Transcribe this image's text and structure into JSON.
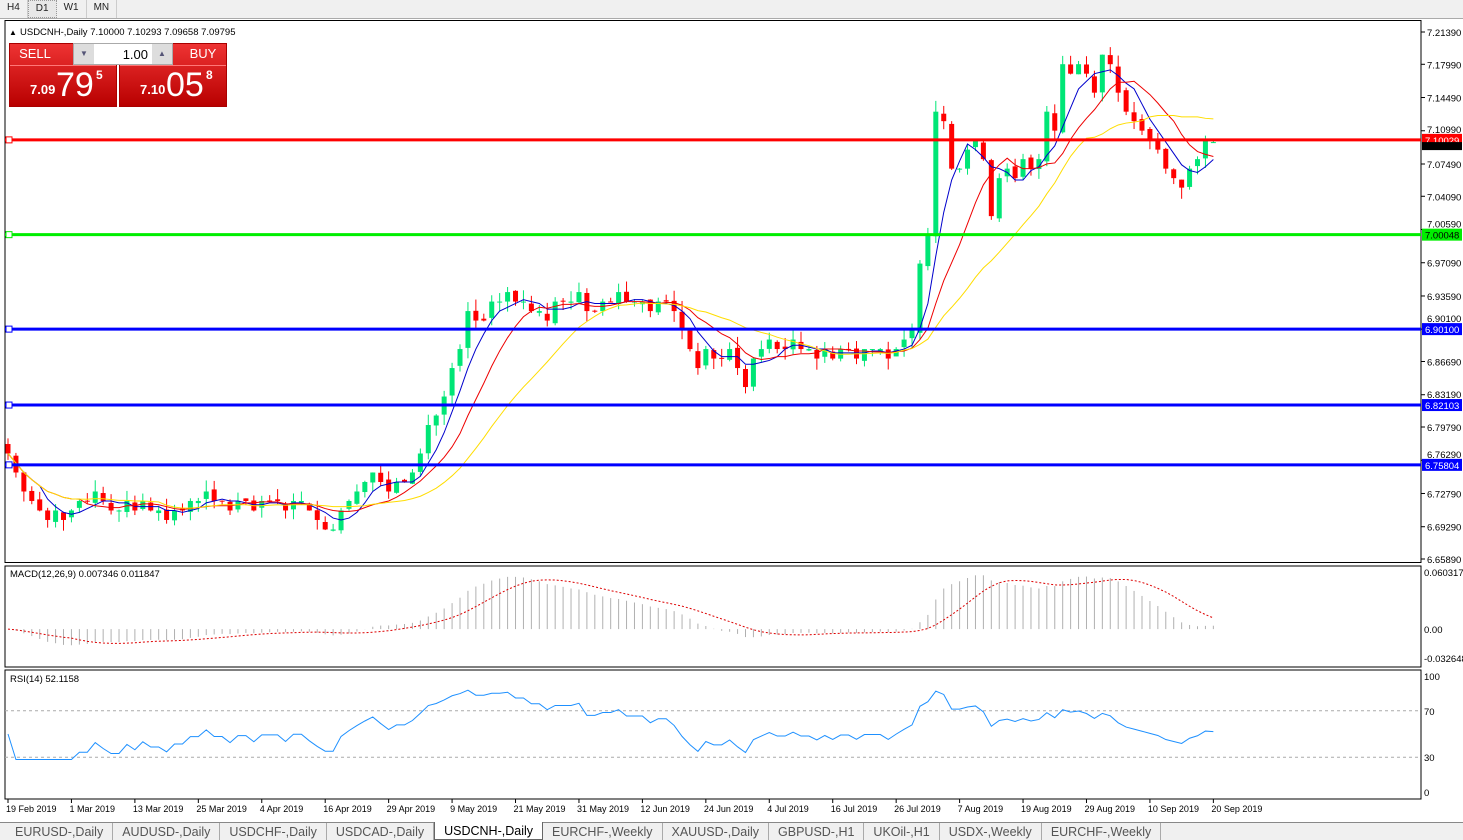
{
  "timeframes": [
    "H4",
    "D1",
    "W1",
    "MN"
  ],
  "active_timeframe": "D1",
  "header": {
    "symbol": "USDCNH-,Daily",
    "ohlc": "7.10000 7.10293 7.09658 7.09795"
  },
  "ticket": {
    "sell_label": "SELL",
    "buy_label": "BUY",
    "lot": "1.00",
    "sell_small": "7.09",
    "sell_big": "79",
    "sell_sup": "5",
    "buy_small": "7.10",
    "buy_big": "05",
    "buy_sup": "8"
  },
  "price_axis": [
    "7.21390",
    "7.17990",
    "7.14490",
    "7.10990",
    "7.07490",
    "7.04090",
    "7.00590",
    "6.97090",
    "6.93590",
    "6.90100",
    "6.86690",
    "6.83190",
    "6.79790",
    "6.76290",
    "6.72790",
    "6.69290",
    "6.65890"
  ],
  "price_range": [
    6.6589,
    7.2139
  ],
  "hlines": [
    {
      "price": "7.10029",
      "color": "#ff0000"
    },
    {
      "price": "7.00048",
      "color": "#00ee00"
    },
    {
      "price": "6.90100",
      "color": "#0000ff"
    },
    {
      "price": "6.82103",
      "color": "#0000ff"
    },
    {
      "price": "6.75804",
      "color": "#0000ff"
    }
  ],
  "current_price": "7.09795",
  "colors": {
    "bull": "#00e676",
    "bear": "#ff0000",
    "ma_fast": "#0000cc",
    "ma_mid": "#ee0000",
    "ma_slow": "#ffdd00",
    "macd_hist": "#b0b0b0",
    "macd_signal": "#dd0000",
    "rsi": "#1e90ff"
  },
  "closes": [
    6.77,
    6.75,
    6.73,
    6.72,
    6.71,
    6.7,
    6.71,
    6.7,
    6.71,
    6.72,
    6.72,
    6.73,
    6.72,
    6.71,
    6.71,
    6.72,
    6.71,
    6.72,
    6.71,
    6.71,
    6.7,
    6.71,
    6.71,
    6.72,
    6.72,
    6.73,
    6.72,
    6.72,
    6.71,
    6.72,
    6.72,
    6.71,
    6.72,
    6.72,
    6.72,
    6.71,
    6.72,
    6.72,
    6.71,
    6.7,
    6.69,
    6.69,
    6.71,
    6.72,
    6.73,
    6.74,
    6.75,
    6.74,
    6.73,
    6.74,
    6.74,
    6.75,
    6.77,
    6.8,
    6.81,
    6.83,
    6.86,
    6.88,
    6.92,
    6.91,
    6.91,
    6.93,
    6.93,
    6.94,
    6.93,
    6.93,
    6.92,
    6.92,
    6.91,
    6.93,
    6.93,
    6.93,
    6.94,
    6.92,
    6.92,
    6.93,
    6.93,
    6.94,
    6.93,
    6.93,
    6.93,
    6.92,
    6.93,
    6.93,
    6.92,
    6.9,
    6.88,
    6.86,
    6.88,
    6.87,
    6.87,
    6.88,
    6.86,
    6.84,
    6.87,
    6.88,
    6.89,
    6.88,
    6.88,
    6.89,
    6.88,
    6.88,
    6.87,
    6.88,
    6.87,
    6.88,
    6.88,
    6.87,
    6.88,
    6.88,
    6.88,
    6.87,
    6.88,
    6.89,
    6.9,
    6.97,
    7.0,
    7.13,
    7.12,
    7.07,
    7.07,
    7.09,
    7.1,
    7.08,
    7.02,
    7.06,
    7.07,
    7.06,
    7.08,
    7.07,
    7.08,
    7.13,
    7.11,
    7.18,
    7.17,
    7.18,
    7.17,
    7.15,
    7.19,
    7.18,
    7.15,
    7.13,
    7.12,
    7.11,
    7.1,
    7.09,
    7.07,
    7.06,
    7.05,
    7.07,
    7.08,
    7.1,
    7.09795
  ],
  "macd": {
    "label": "MACD(12,26,9) 0.007346 0.011847",
    "axis": [
      "0.060317",
      "0.00",
      "-0.032648"
    ]
  },
  "rsi": {
    "label": "RSI(14) 52.1158",
    "axis": [
      "100",
      "70",
      "30",
      "0"
    ]
  },
  "dates": [
    "19 Feb 2019",
    "1 Mar 2019",
    "13 Mar 2019",
    "25 Mar 2019",
    "4 Apr 2019",
    "16 Apr 2019",
    "29 Apr 2019",
    "9 May 2019",
    "21 May 2019",
    "31 May 2019",
    "12 Jun 2019",
    "24 Jun 2019",
    "4 Jul 2019",
    "16 Jul 2019",
    "26 Jul 2019",
    "7 Aug 2019",
    "19 Aug 2019",
    "29 Aug 2019",
    "10 Sep 2019",
    "20 Sep 2019"
  ],
  "tabs": [
    "EURUSD-,Daily",
    "AUDUSD-,Daily",
    "USDCHF-,Daily",
    "USDCAD-,Daily",
    "USDCNH-,Daily",
    "EURCHF-,Weekly",
    "XAUUSD-,Daily",
    "GBPUSD-,H1",
    "UKOil-,H1",
    "USDX-,Weekly",
    "EURCHF-,Weekly"
  ],
  "active_tab": "USDCNH-,Daily"
}
